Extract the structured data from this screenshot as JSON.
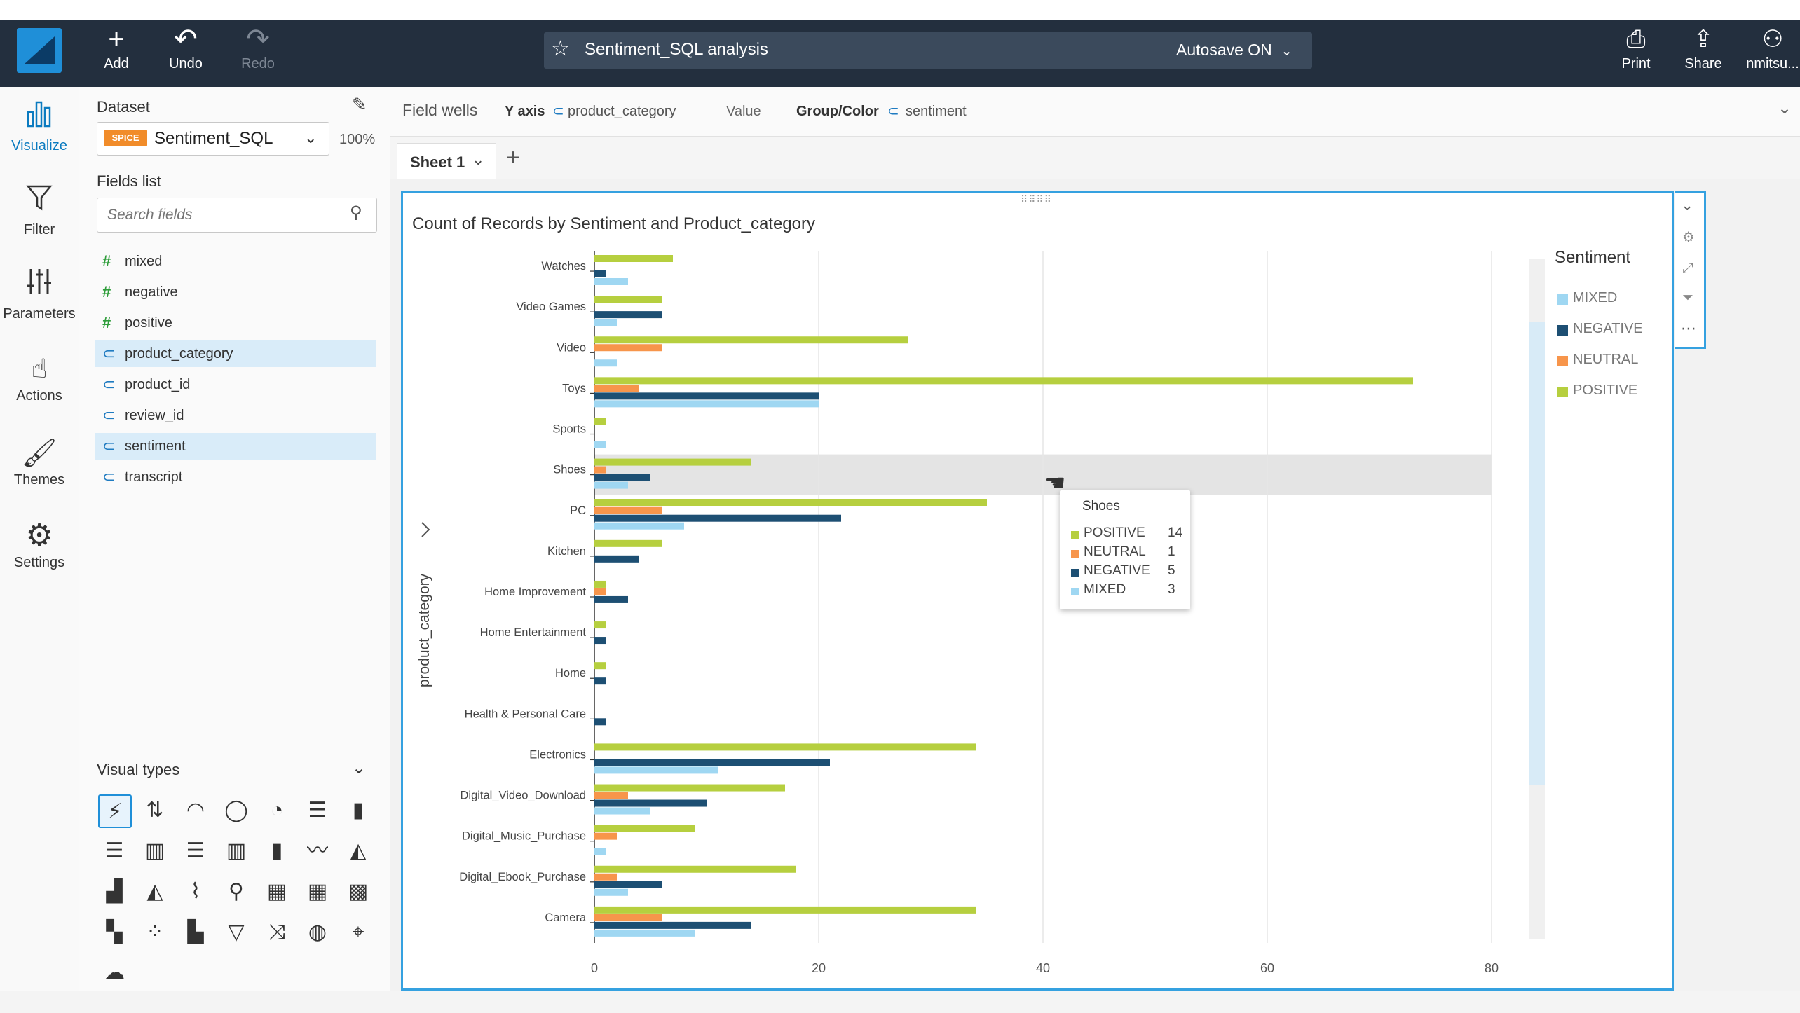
{
  "topbar": {
    "add_label": "Add",
    "undo_label": "Undo",
    "redo_label": "Redo",
    "analysis_title": "Sentiment_SQL analysis",
    "autosave_label": "Autosave ON",
    "print_label": "Print",
    "share_label": "Share",
    "user_label": "nmitsu..."
  },
  "rail": {
    "visualize": "Visualize",
    "filter": "Filter",
    "parameters": "Parameters",
    "actions": "Actions",
    "themes": "Themes",
    "settings": "Settings"
  },
  "panel": {
    "dataset_label": "Dataset",
    "spice_badge": "SPICE",
    "dataset_name": "Sentiment_SQL",
    "dataset_percent": "100%",
    "fields_list_label": "Fields list",
    "search_placeholder": "Search fields",
    "fields": [
      {
        "name": "mixed",
        "kind": "measure"
      },
      {
        "name": "negative",
        "kind": "measure"
      },
      {
        "name": "positive",
        "kind": "measure"
      },
      {
        "name": "product_category",
        "kind": "dimension",
        "selected": true
      },
      {
        "name": "product_id",
        "kind": "dimension"
      },
      {
        "name": "review_id",
        "kind": "dimension"
      },
      {
        "name": "sentiment",
        "kind": "dimension",
        "selected": true
      },
      {
        "name": "transcript",
        "kind": "dimension"
      }
    ],
    "visual_types_label": "Visual types"
  },
  "wells": {
    "title": "Field wells",
    "y_axis_label": "Y axis",
    "y_axis_field": "product_category",
    "value_label": "Value",
    "group_label": "Group/Color",
    "group_field": "sentiment"
  },
  "sheets": {
    "active": "Sheet 1"
  },
  "visual": {
    "title": "Count of Records by Sentiment and Product_category"
  },
  "colors": {
    "positive": "#b6cf3f",
    "neutral": "#f7954b",
    "negative": "#1d4f73",
    "mixed": "#9fd7f2",
    "accent": "#35a1e0",
    "topbar": "#232f3e"
  },
  "tooltip": {
    "category": "Shoes",
    "rows": [
      {
        "name": "POSITIVE",
        "value": "14",
        "color": "#b6cf3f"
      },
      {
        "name": "NEUTRAL",
        "value": "1",
        "color": "#f7954b"
      },
      {
        "name": "NEGATIVE",
        "value": "5",
        "color": "#1d4f73"
      },
      {
        "name": "MIXED",
        "value": "3",
        "color": "#9fd7f2"
      }
    ]
  },
  "chart_data": {
    "type": "bar",
    "orientation": "horizontal",
    "title": "Count of Records by Sentiment and Product_category",
    "ylabel": "product_category",
    "xlabel": "",
    "xlim": [
      0,
      80
    ],
    "xticks": [
      0,
      20,
      40,
      60,
      80
    ],
    "grid": true,
    "legend_title": "Sentiment",
    "legend_position": "right",
    "legend_order": [
      "MIXED",
      "NEGATIVE",
      "NEUTRAL",
      "POSITIVE"
    ],
    "categories": [
      "Watches",
      "Video Games",
      "Video",
      "Toys",
      "Sports",
      "Shoes",
      "PC",
      "Kitchen",
      "Home Improvement",
      "Home Entertainment",
      "Home",
      "Health & Personal Care",
      "Electronics",
      "Digital_Video_Download",
      "Digital_Music_Purchase",
      "Digital_Ebook_Purchase",
      "Camera"
    ],
    "highlighted_category": "Shoes",
    "series": [
      {
        "name": "POSITIVE",
        "color": "#b6cf3f",
        "values": [
          7,
          6,
          28,
          73,
          1,
          14,
          35,
          6,
          1,
          1,
          1,
          0,
          34,
          17,
          9,
          18,
          34
        ]
      },
      {
        "name": "NEUTRAL",
        "color": "#f7954b",
        "values": [
          0,
          0,
          6,
          4,
          0,
          1,
          6,
          0,
          1,
          0,
          0,
          0,
          0,
          3,
          2,
          2,
          6
        ]
      },
      {
        "name": "NEGATIVE",
        "color": "#1d4f73",
        "values": [
          1,
          6,
          0,
          20,
          0,
          5,
          22,
          4,
          3,
          1,
          1,
          1,
          21,
          10,
          0,
          6,
          14
        ]
      },
      {
        "name": "MIXED",
        "color": "#9fd7f2",
        "values": [
          3,
          2,
          2,
          20,
          1,
          3,
          8,
          0,
          0,
          0,
          0,
          0,
          11,
          5,
          1,
          3,
          9
        ]
      }
    ]
  }
}
